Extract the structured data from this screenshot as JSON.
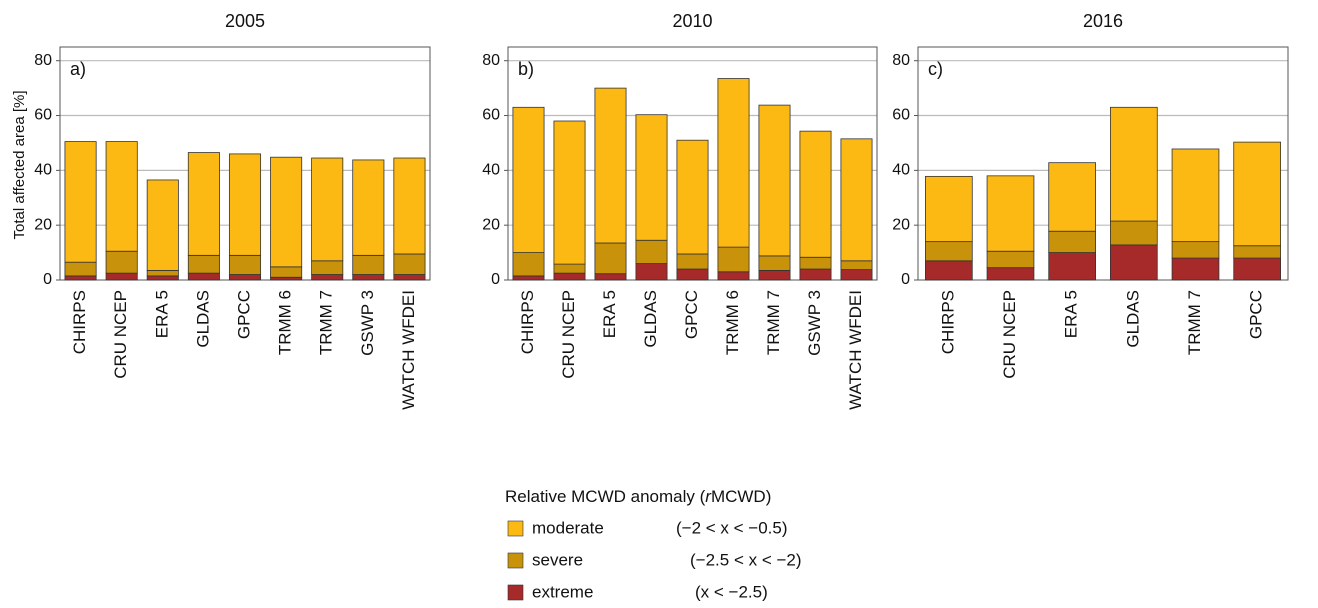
{
  "chart_data": [
    {
      "type": "bar",
      "stacked": true,
      "title": "2005",
      "panel_label": "a)",
      "ylabel": "Total affected area [%]",
      "categories": [
        "CHIRPS",
        "CRU NCEP",
        "ERA 5",
        "GLDAS",
        "GPCC",
        "TRMM 6",
        "TRMM 7",
        "GSWP 3",
        "WATCH WFDEI"
      ],
      "series": [
        {
          "values": [
            44,
            40,
            33,
            37.5,
            37,
            40,
            37.5,
            34.8,
            35
          ]
        },
        {
          "values": [
            5,
            8,
            2,
            6.5,
            7,
            3.8,
            5,
            7,
            7.5
          ]
        },
        {
          "values": [
            1.5,
            2.5,
            1.5,
            2.5,
            2,
            1,
            2,
            2,
            2
          ]
        }
      ],
      "ylim": [
        0,
        85
      ],
      "yticks": [
        0,
        20,
        40,
        60,
        80
      ],
      "grid": true
    },
    {
      "type": "bar",
      "stacked": true,
      "title": "2010",
      "panel_label": "b)",
      "categories": [
        "CHIRPS",
        "CRU NCEP",
        "ERA 5",
        "GLDAS",
        "GPCC",
        "TRMM 6",
        "TRMM 7",
        "GSWP 3",
        "WATCH WFDEI"
      ],
      "series": [
        {
          "values": [
            53,
            52.2,
            56.5,
            45.8,
            41.5,
            61.5,
            55,
            46,
            44.5
          ]
        },
        {
          "values": [
            8.5,
            3.3,
            11.2,
            8.5,
            5.5,
            9,
            5.3,
            4.3,
            3.2
          ]
        },
        {
          "values": [
            1.5,
            2.5,
            2.3,
            6,
            4,
            3,
            3.5,
            4,
            3.8
          ]
        }
      ],
      "ylim": [
        0,
        85
      ],
      "yticks": [
        0,
        20,
        40,
        60,
        80
      ],
      "grid": true
    },
    {
      "type": "bar",
      "stacked": true,
      "title": "2016",
      "panel_label": "c)",
      "categories": [
        "CHIRPS",
        "CRU NCEP",
        "ERA 5",
        "GLDAS",
        "TRMM 7",
        "GPCC"
      ],
      "series": [
        {
          "values": [
            23.8,
            27.5,
            25,
            41.5,
            33.8,
            37.8
          ]
        },
        {
          "values": [
            7,
            6,
            7.8,
            8.7,
            6,
            4.5
          ]
        },
        {
          "values": [
            7,
            4.5,
            10,
            12.8,
            8,
            8
          ]
        }
      ],
      "ylim": [
        0,
        85
      ],
      "yticks": [
        0,
        20,
        40,
        60,
        80
      ],
      "grid": true
    }
  ],
  "legend": {
    "title": [
      "Relative MCWD anomaly (",
      "r",
      "MCWD)"
    ],
    "entries": [
      {
        "name": "moderate",
        "range": "(−2 < x < −0.5)",
        "color": "#fdb913"
      },
      {
        "name": "severe",
        "range": "(−2.5 < x < −2)",
        "color": "#c8930a"
      },
      {
        "name": "extreme",
        "range": "(x < −2.5)",
        "color": "#a72a2a"
      }
    ]
  }
}
